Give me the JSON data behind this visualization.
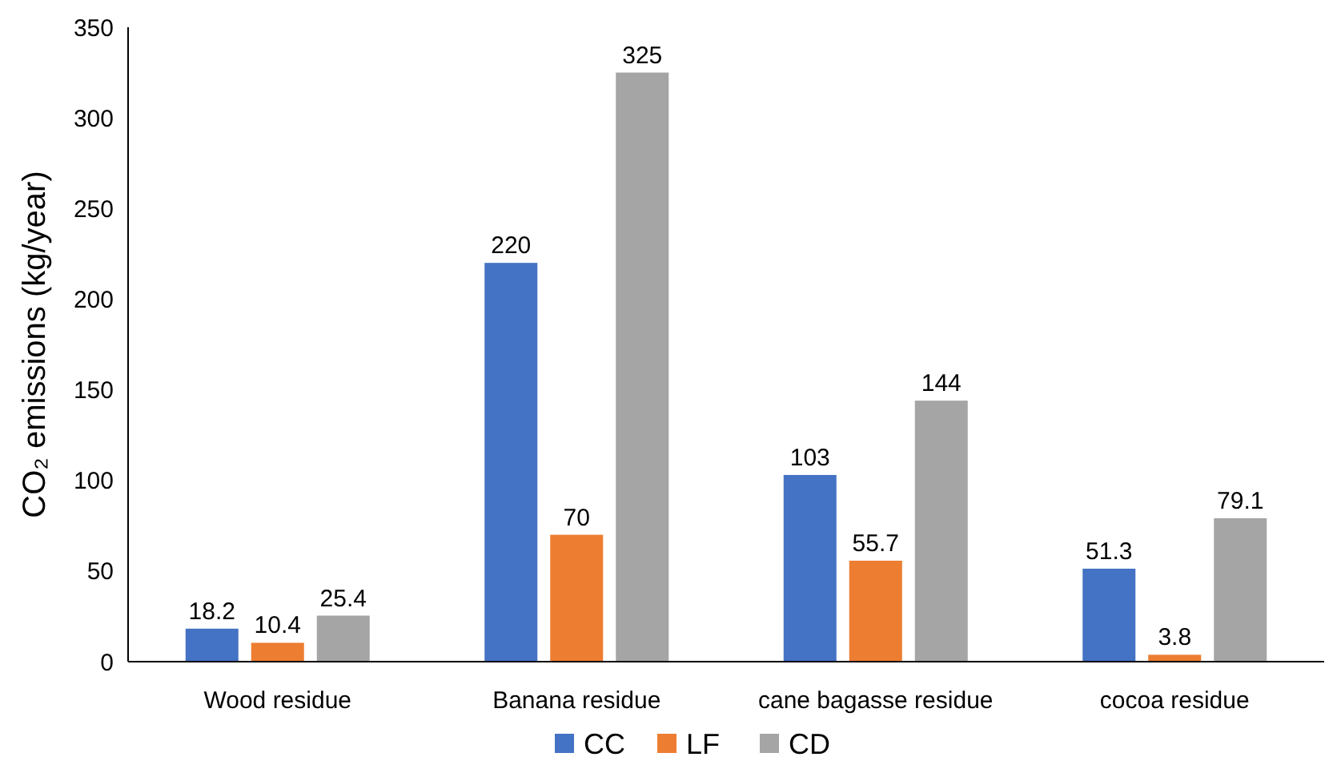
{
  "chart_data": {
    "type": "bar",
    "ylabel": "CO₂ emissions (kg/year)",
    "categories": [
      "Wood residue",
      "Banana residue",
      "cane bagasse residue",
      "cocoa residue"
    ],
    "series": [
      {
        "name": "CC",
        "color": "#4472c4",
        "values": [
          18.2,
          220,
          103,
          51.3
        ]
      },
      {
        "name": "LF",
        "color": "#ed7d31",
        "values": [
          10.4,
          70,
          55.7,
          3.8
        ]
      },
      {
        "name": "CD",
        "color": "#a5a5a5",
        "values": [
          25.4,
          325,
          144,
          79.1
        ]
      }
    ],
    "ylim": [
      0,
      350
    ],
    "yticks": [
      0,
      50,
      100,
      150,
      200,
      250,
      300,
      350
    ],
    "data_labels": true,
    "legend": "bottom",
    "grid": false
  }
}
